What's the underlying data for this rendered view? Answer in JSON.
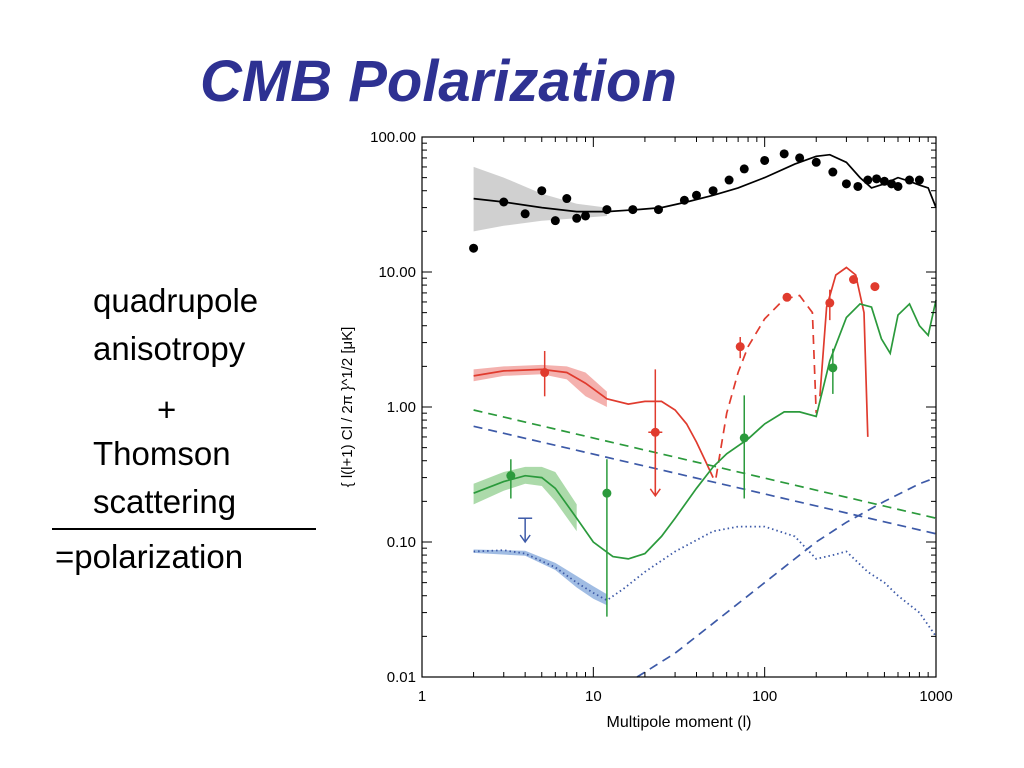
{
  "slide": {
    "title": "CMB Polarization",
    "lines": {
      "l1": "quadrupole",
      "l2": "anisotropy",
      "l3": "+",
      "l4": "Thomson",
      "l5": "scattering",
      "l6": "=polarization"
    }
  },
  "chart_data": {
    "type": "line",
    "xscale": "log",
    "yscale": "log",
    "xlim": [
      1,
      1000
    ],
    "ylim": [
      0.01,
      100
    ],
    "xticks": [
      "1",
      "10",
      "100",
      "1000"
    ],
    "yticks": [
      "0.01",
      "0.10",
      "1.00",
      "10.00",
      "100.00"
    ],
    "xlabel": "Multipole moment (l)",
    "ylabel": "{ l(l+1) Cl / 2π }^1/2 [μK]",
    "grid": false,
    "colors": {
      "tt": "#000000",
      "te": "#e03b2e",
      "ee": "#2b9a3c",
      "bb": "#3d5aa8",
      "tt_band": "#c8c8c8",
      "te_band": "#f2a3a0",
      "ee_band": "#9ed49b",
      "bb_band": "#8fb0de"
    },
    "series": [
      {
        "key": "tt_model",
        "style": "solid",
        "color": "tt",
        "x": [
          2,
          3,
          5,
          8,
          12,
          18,
          25,
          35,
          50,
          70,
          100,
          150,
          200,
          240,
          300,
          360,
          420,
          500,
          600,
          700,
          800,
          900,
          1000
        ],
        "y": [
          35,
          33,
          30,
          28,
          28,
          29,
          30,
          33,
          37,
          42,
          50,
          63,
          72,
          74,
          65,
          50,
          42,
          45,
          50,
          47,
          44,
          42,
          30
        ]
      },
      {
        "key": "te_model",
        "style": "solid",
        "color": "te",
        "x": [
          2,
          3,
          5,
          7,
          9,
          12,
          16,
          20,
          25,
          30,
          35,
          40,
          45,
          50
        ],
        "y": [
          1.7,
          1.85,
          1.9,
          1.8,
          1.5,
          1.15,
          1.05,
          1.1,
          1.1,
          0.95,
          0.75,
          0.55,
          0.4,
          0.3
        ]
      },
      {
        "key": "te_model_abs",
        "style": "dashed",
        "color": "te",
        "x": [
          52,
          60,
          70,
          80,
          100,
          130,
          160,
          190,
          200
        ],
        "y": [
          0.3,
          0.9,
          1.8,
          2.8,
          4.5,
          6.3,
          6.7,
          5.0,
          0.9
        ]
      },
      {
        "key": "te_model_hi",
        "style": "solid",
        "color": "te",
        "x": [
          210,
          230,
          260,
          300,
          340,
          380,
          400
        ],
        "y": [
          1.2,
          5.5,
          9.5,
          10.8,
          9.5,
          5.0,
          0.6
        ]
      },
      {
        "key": "ee_model",
        "style": "solid",
        "color": "ee",
        "x": [
          2,
          3,
          4,
          5,
          6,
          8,
          10,
          13,
          16,
          20,
          25,
          30,
          40,
          50,
          60,
          80,
          100,
          130,
          160,
          200,
          240,
          300,
          360,
          420,
          480,
          540,
          600,
          700,
          800,
          900,
          1000
        ],
        "y": [
          0.23,
          0.28,
          0.31,
          0.3,
          0.25,
          0.15,
          0.1,
          0.078,
          0.075,
          0.082,
          0.11,
          0.15,
          0.25,
          0.36,
          0.45,
          0.58,
          0.75,
          0.92,
          0.92,
          0.85,
          2.2,
          4.6,
          5.8,
          5.5,
          3.2,
          2.5,
          4.8,
          5.8,
          4.0,
          3.4,
          6.2
        ]
      },
      {
        "key": "bb_model",
        "style": "dotted",
        "color": "bb",
        "x": [
          2,
          3,
          4,
          6,
          8,
          10,
          12,
          15,
          20,
          30,
          50,
          70,
          100,
          150,
          200,
          250,
          300,
          400,
          500,
          600,
          800,
          1000
        ],
        "y": [
          0.085,
          0.087,
          0.082,
          0.065,
          0.05,
          0.042,
          0.037,
          0.045,
          0.06,
          0.085,
          0.12,
          0.13,
          0.13,
          0.11,
          0.075,
          0.08,
          0.085,
          0.06,
          0.05,
          0.04,
          0.03,
          0.02
        ]
      },
      {
        "key": "bb_lensing",
        "style": "dashed",
        "color": "bb",
        "x": [
          18,
          30,
          50,
          100,
          200,
          300,
          500,
          800,
          1000
        ],
        "y": [
          0.01,
          0.015,
          0.025,
          0.05,
          0.1,
          0.14,
          0.2,
          0.27,
          0.3
        ]
      },
      {
        "key": "foreground_ee",
        "style": "dashed",
        "color": "ee",
        "x": [
          2,
          1000
        ],
        "y": [
          0.95,
          0.15
        ]
      },
      {
        "key": "foreground_bb",
        "style": "dashed",
        "color": "bb",
        "x": [
          2,
          1000
        ],
        "y": [
          0.72,
          0.115
        ]
      }
    ],
    "bands": [
      {
        "key": "tt_band",
        "color": "tt_band",
        "x": [
          2,
          3,
          5,
          8,
          12
        ],
        "lower": [
          20,
          22,
          24,
          25,
          26
        ],
        "upper": [
          60,
          50,
          38,
          32,
          30
        ]
      },
      {
        "key": "te_band",
        "color": "te_band",
        "x": [
          2,
          3,
          5,
          7,
          9,
          12
        ],
        "lower": [
          1.55,
          1.7,
          1.75,
          1.6,
          1.2,
          1.0
        ],
        "upper": [
          1.9,
          2.0,
          2.05,
          2.0,
          1.8,
          1.3
        ]
      },
      {
        "key": "ee_band",
        "color": "ee_band",
        "x": [
          2,
          3,
          4,
          5,
          6,
          8
        ],
        "lower": [
          0.19,
          0.24,
          0.27,
          0.26,
          0.2,
          0.12
        ],
        "upper": [
          0.27,
          0.33,
          0.36,
          0.36,
          0.33,
          0.19
        ]
      },
      {
        "key": "bb_band",
        "color": "bb_band",
        "x": [
          2,
          4,
          6,
          8,
          10,
          12
        ],
        "lower": [
          0.083,
          0.079,
          0.062,
          0.046,
          0.038,
          0.034
        ],
        "upper": [
          0.088,
          0.086,
          0.07,
          0.056,
          0.047,
          0.041
        ]
      }
    ],
    "points": [
      {
        "key": "tt_data",
        "color": "tt",
        "x": [
          2,
          3,
          4,
          5,
          6,
          7,
          8,
          9,
          12,
          17,
          24,
          34,
          40,
          50,
          62,
          76,
          100,
          130,
          160,
          200,
          250,
          300,
          350,
          400,
          450,
          500,
          550,
          600,
          700,
          800
        ],
        "y": [
          15,
          33,
          27,
          40,
          24,
          35,
          25,
          26,
          29,
          29,
          29,
          34,
          37,
          40,
          48,
          58,
          67,
          75,
          70,
          65,
          55,
          45,
          43,
          48,
          49,
          47,
          45,
          43,
          48,
          48
        ],
        "err": []
      },
      {
        "key": "te_data",
        "color": "te",
        "x": [
          5.2,
          23,
          72,
          135,
          240,
          330,
          440
        ],
        "y": [
          1.8,
          0.65,
          2.8,
          6.5,
          5.9,
          8.8,
          7.8
        ],
        "err": [
          [
            1.2,
            2.6
          ],
          [
            0.22,
            1.9
          ],
          [
            2.3,
            3.3
          ],
          [
            6.2,
            6.8
          ],
          [
            4.4,
            7.4
          ],
          [
            8.4,
            9.2
          ],
          [
            7.4,
            8.2
          ]
        ]
      },
      {
        "key": "ee_data",
        "color": "ee",
        "x": [
          3.3,
          12,
          76,
          250
        ],
        "y": [
          0.31,
          0.23,
          0.59,
          1.95
        ],
        "err": [
          [
            0.21,
            0.41
          ],
          [
            0.028,
            0.41
          ],
          [
            0.21,
            1.22
          ],
          [
            1.25,
            2.7
          ]
        ]
      }
    ],
    "upper_limits": [
      {
        "key": "te_limit",
        "color": "te",
        "x": 23,
        "top": 0.65,
        "bottom": 0.22
      },
      {
        "key": "bb_limit",
        "color": "bb",
        "x": 4,
        "top": 0.15,
        "bottom": 0.1
      }
    ]
  }
}
